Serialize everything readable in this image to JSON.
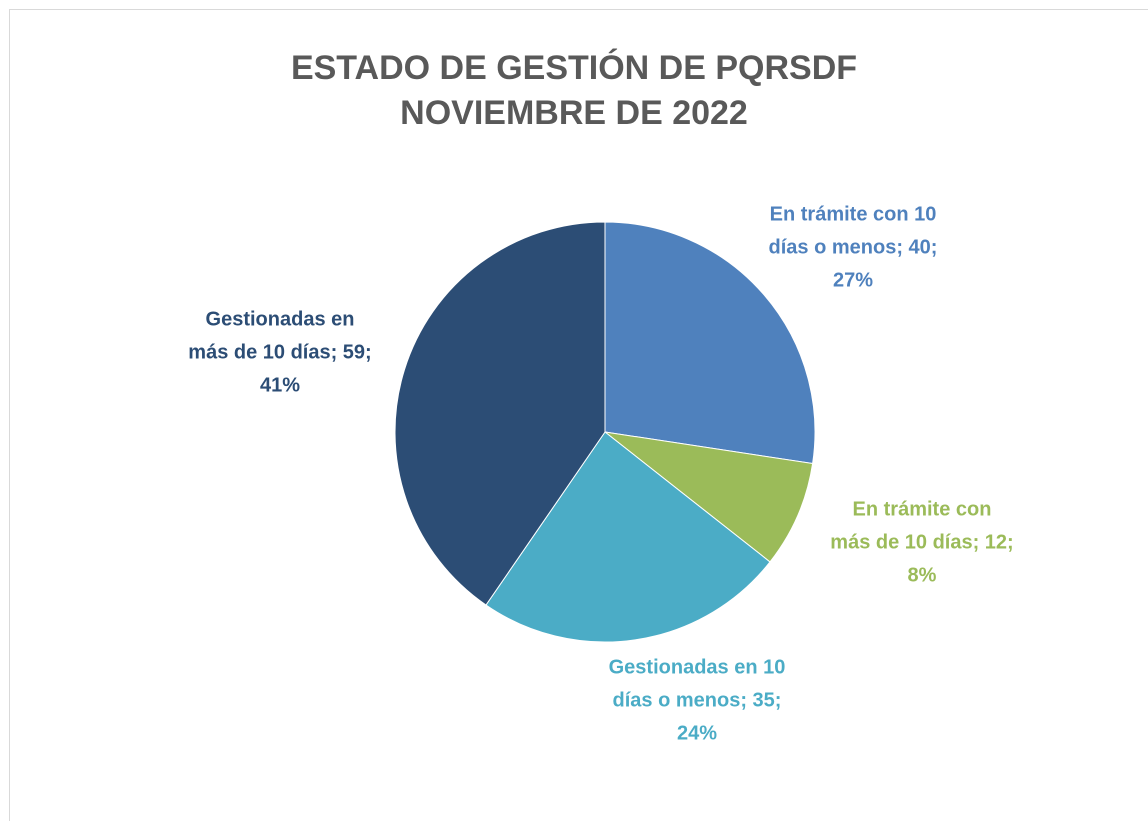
{
  "chart_data": {
    "type": "pie",
    "title": [
      "ESTADO DE GESTIÓN DE PQRSDF",
      "NOVIEMBRE DE 2022"
    ],
    "categories": [
      "En trámite con 10 días o menos",
      "En trámite con más de 10 días",
      "Gestionadas en 10 días o menos",
      "Gestionadas en más de 10 días"
    ],
    "values": [
      40,
      12,
      35,
      59
    ],
    "percents": [
      27,
      8,
      24,
      41
    ],
    "data_labels": [
      [
        "En trámite con 10",
        "días o menos; 40;",
        "27%"
      ],
      [
        "En trámite con",
        "más de 10 días; 12;",
        "8%"
      ],
      [
        "Gestionadas en 10",
        "días o menos; 35;",
        "24%"
      ],
      [
        "Gestionadas en",
        "más de 10 días; 59;",
        "41%"
      ]
    ],
    "colors": [
      "#4f81bd",
      "#9bbb59",
      "#4bacc6",
      "#2c4d75"
    ],
    "label_colors": [
      "#4f81bd",
      "#9bbb59",
      "#4bacc6",
      "#2c4d75"
    ]
  }
}
